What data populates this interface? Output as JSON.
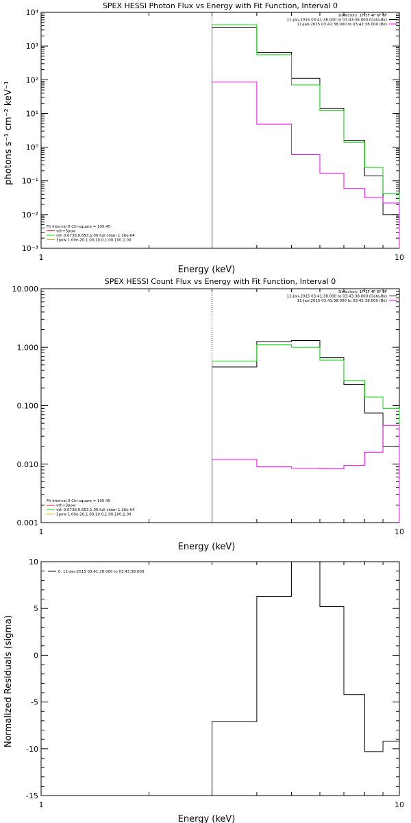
{
  "chart_data": [
    {
      "type": "line",
      "title": "SPEX HESSI Photon Flux vs Energy with Fit Function, Interval 0",
      "xlabel": "Energy (keV)",
      "ylabel": "photons s⁻¹ cm⁻² keV⁻¹",
      "xscale": "log",
      "yscale": "log",
      "xlim": [
        1,
        10
      ],
      "ylim": [
        0.001,
        10000
      ],
      "x_ticks": [
        1,
        10
      ],
      "x_tick_labels": [
        "1",
        "10"
      ],
      "y_ticks": [
        0.001,
        0.01,
        0.1,
        1,
        10,
        100,
        1000,
        10000
      ],
      "y_tick_labels": [
        "10⁻³",
        "10⁻²",
        "10⁻¹",
        "10⁰",
        "10¹",
        "10²",
        "10³",
        "10⁴"
      ],
      "vertical_line_x": 3.0,
      "edges": [
        3.0,
        4.0,
        5.0,
        6.0,
        7.0,
        8.0,
        9.0,
        10.0
      ],
      "series": [
        {
          "color": "#000000",
          "values": [
            3500,
            650,
            110,
            14,
            1.6,
            0.14,
            0.01
          ]
        },
        {
          "color": "#00dd00",
          "values": [
            4300,
            550,
            70,
            12,
            1.4,
            0.25,
            0.042
          ]
        },
        {
          "color": "#ff00ff",
          "values": [
            85,
            4.8,
            0.6,
            0.17,
            0.06,
            0.032,
            0.022
          ]
        }
      ],
      "legend_top": [
        {
          "text": "Detectors: 1F 3F 4F 6F 8F",
          "color": ""
        },
        {
          "text": "11-Jan-2015 03:41:38.000 to 03:43:38.000 (Data-Bk)",
          "color": "#000000"
        },
        {
          "text": "11-Jan-2015 03:41:38.000 to 03:42:38.000 (Bk)",
          "color": "#ff00ff"
        }
      ],
      "legend_bottom": [
        {
          "text": "Fit Interval 0   Chi-square = 105.45",
          "color": ""
        },
        {
          "text": "vth+3pow",
          "color": "#ff0000"
        },
        {
          "text": "vth 0.0738,0.653,1.00  full chian 1.26e-04",
          "color": "#00dd00"
        },
        {
          "text": "3pow 1.00e-20,1.00,10.0,1.00,100,1.00",
          "color": "#ddaa00"
        }
      ]
    },
    {
      "type": "line",
      "title": "SPEX HESSI Count Flux vs Energy with Fit Function, Interval 0",
      "xlabel": "Energy (keV)",
      "ylabel": "",
      "xscale": "log",
      "yscale": "log",
      "xlim": [
        1,
        10
      ],
      "ylim": [
        0.001,
        10
      ],
      "x_ticks": [
        1,
        10
      ],
      "x_tick_labels": [
        "1",
        "10"
      ],
      "y_ticks": [
        0.001,
        0.01,
        0.1,
        1,
        10
      ],
      "y_tick_labels": [
        "0.001",
        "0.010",
        "0.100",
        "1.000",
        "10.000"
      ],
      "vertical_line_x": 3.0,
      "edges": [
        3.0,
        4.0,
        5.0,
        6.0,
        7.0,
        8.0,
        9.0,
        10.0
      ],
      "series": [
        {
          "color": "#000000",
          "values": [
            0.46,
            1.25,
            1.3,
            0.66,
            0.23,
            0.075,
            0.02
          ]
        },
        {
          "color": "#00dd00",
          "values": [
            0.58,
            1.1,
            1.0,
            0.6,
            0.27,
            0.14,
            0.09
          ]
        },
        {
          "color": "#ff00ff",
          "values": [
            0.012,
            0.009,
            0.0085,
            0.0083,
            0.0095,
            0.016,
            0.046
          ]
        }
      ],
      "legend_top": [
        {
          "text": "Detectors: 1F 3F 4F 6F 8F",
          "color": ""
        },
        {
          "text": "11-Jan-2015 03:41:38.000 to 03:43:38.000 (Data-Bk)",
          "color": "#000000"
        },
        {
          "text": "11-Jan-2015 03:41:38.000 to 03:42:38.000 (Bk)",
          "color": "#ff00ff"
        }
      ],
      "legend_bottom": [
        {
          "text": "Fit Interval 0   Chi-square = 105.45",
          "color": ""
        },
        {
          "text": "vth+3pow",
          "color": "#ff0000"
        },
        {
          "text": "vth 0.0738,0.653,1.00  full chian 1.26e-04",
          "color": "#00dd00"
        },
        {
          "text": "3pow 1.00e-20,1.00,10.0,1.00,100,1.00",
          "color": "#ddaa00"
        }
      ]
    },
    {
      "type": "line",
      "title": "",
      "xlabel": "Energy (keV)",
      "ylabel": "Normalized Residuals (sigma)",
      "xscale": "log",
      "yscale": "linear",
      "xlim": [
        1,
        10
      ],
      "ylim": [
        -15,
        10
      ],
      "x_ticks": [
        1,
        10
      ],
      "x_tick_labels": [
        "1",
        "10"
      ],
      "y_ticks": [
        -15,
        -10,
        -5,
        0,
        5,
        10
      ],
      "y_tick_labels": [
        "-15",
        "-10",
        "-5",
        "0",
        "5",
        "10"
      ],
      "edges": [
        3.0,
        4.0,
        5.0,
        6.0,
        7.0,
        8.0,
        9.0,
        10.0
      ],
      "series": [
        {
          "color": "#000000",
          "values": [
            -7.1,
            6.3,
            10.0,
            5.2,
            -4.2,
            -10.3,
            -9.2
          ]
        }
      ],
      "legend_top": [
        {
          "text": "0. 11-Jan-2015 03:41:38.000 to 03:43:38.000",
          "color": "#000000"
        }
      ]
    }
  ]
}
